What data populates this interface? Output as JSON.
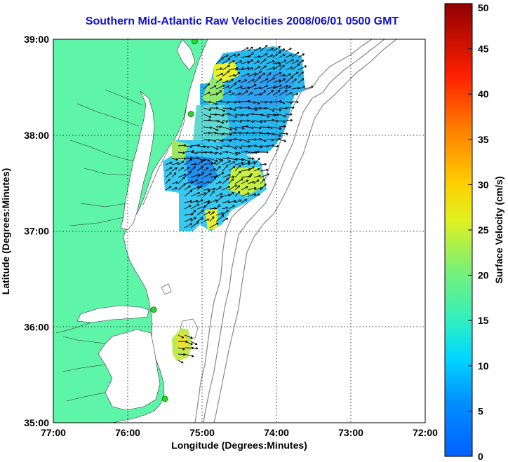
{
  "title": "Southern Mid-Atlantic Raw Velocities 2008/06/01 0500 GMT",
  "xlabel": "Longitude (Degrees:Minutes)",
  "ylabel": "Latitude (Degrees:Minutes)",
  "colorbar_label": "Surface Velocity (cm/s)",
  "x_ticks": [
    "77:00",
    "76:00",
    "75:00",
    "74:00",
    "73:00",
    "72:00"
  ],
  "y_ticks": [
    "39:00",
    "38:00",
    "37:00",
    "36:00",
    "35:00"
  ],
  "colorbar_ticks": [
    "0",
    "5",
    "10",
    "15",
    "20",
    "25",
    "30",
    "35",
    "40",
    "45",
    "50"
  ],
  "colors": {
    "land": "#5ff5a8",
    "contour": "#888888",
    "title": "#1010d0",
    "station": "#22dd22"
  },
  "chart_data": {
    "type": "map",
    "xlim": [
      -77,
      -72
    ],
    "ylim": [
      35,
      39
    ],
    "colorbar_range": [
      0,
      50
    ],
    "colorbar_units": "cm/s",
    "grid": true,
    "stations": [
      {
        "lon": -75.1,
        "lat": 38.98
      },
      {
        "lon": -75.15,
        "lat": 38.22
      },
      {
        "lon": -75.65,
        "lat": 36.18
      },
      {
        "lon": -75.5,
        "lat": 35.25
      }
    ]
  }
}
